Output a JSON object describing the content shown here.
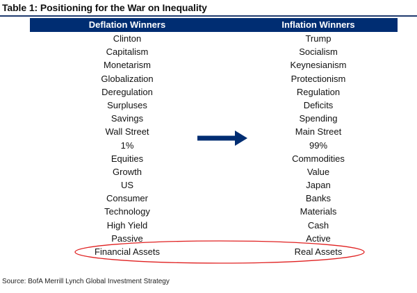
{
  "title": "Table 1: Positioning for the War on Inequality",
  "header": {
    "left": "Deflation Winners",
    "right": "Inflation Winners"
  },
  "rows": [
    {
      "left": "Clinton",
      "right": "Trump"
    },
    {
      "left": "Capitalism",
      "right": "Socialism"
    },
    {
      "left": "Monetarism",
      "right": "Keynesianism"
    },
    {
      "left": "Globalization",
      "right": "Protectionism"
    },
    {
      "left": "Deregulation",
      "right": "Regulation"
    },
    {
      "left": "Surpluses",
      "right": "Deficits"
    },
    {
      "left": "Savings",
      "right": "Spending"
    },
    {
      "left": "Wall Street",
      "right": "Main Street"
    },
    {
      "left": "1%",
      "right": "99%"
    },
    {
      "left": "Equities",
      "right": "Commodities"
    },
    {
      "left": "Growth",
      "right": "Value"
    },
    {
      "left": "US",
      "right": "Japan"
    },
    {
      "left": "Consumer",
      "right": "Banks"
    },
    {
      "left": "Technology",
      "right": "Materials"
    },
    {
      "left": "High Yield",
      "right": "Cash"
    },
    {
      "left": "Passive",
      "right": "Active"
    },
    {
      "left": "Financial Assets",
      "right": "Real Assets"
    }
  ],
  "source": "Source: BofA Merrill Lynch Global Investment Strategy",
  "colors": {
    "header_bg": "#002d72",
    "arrow": "#002d72",
    "highlight_ellipse": "#e02020"
  },
  "icons": {
    "arrow": "right-arrow-icon"
  }
}
